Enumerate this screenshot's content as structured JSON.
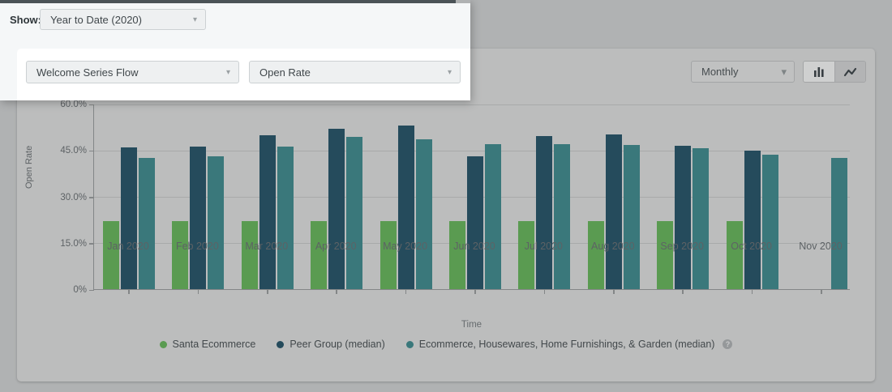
{
  "overlay": {
    "show_label": "Show:",
    "date_range_value": "Year to Date (2020)",
    "flow_value": "Welcome Series Flow",
    "metric_value": "Open Rate"
  },
  "toolbar": {
    "interval_value": "Monthly",
    "chart_type_active": "bar",
    "icons": [
      "bar-chart-icon",
      "line-chart-icon"
    ]
  },
  "chart_data": {
    "type": "bar",
    "title": "",
    "xlabel": "Time",
    "ylabel": "Open Rate",
    "ylim": [
      0,
      60
    ],
    "grid": true,
    "legend_position": "bottom",
    "yticks": [
      {
        "value": 0,
        "label": "0%"
      },
      {
        "value": 15,
        "label": "15.0%"
      },
      {
        "value": 30,
        "label": "30.0%"
      },
      {
        "value": 45,
        "label": "45.0%"
      },
      {
        "value": 60,
        "label": "60.0%"
      }
    ],
    "categories": [
      "Jan 2020",
      "Feb 2020",
      "Mar 2020",
      "Apr 2020",
      "May 2020",
      "Jun 2020",
      "Jul 2020",
      "Aug 2020",
      "Sep 2020",
      "Oct 2020",
      "Nov 2020"
    ],
    "series": [
      {
        "name": "Santa Ecommerce",
        "color": "#5a9b51",
        "values": [
          22,
          22,
          22,
          22,
          22,
          22,
          22,
          22,
          22,
          22,
          null
        ]
      },
      {
        "name": "Peer Group (median)",
        "color": "#254b5c",
        "values": [
          45.8,
          46.2,
          49.8,
          52.0,
          52.8,
          43.1,
          49.6,
          50.0,
          46.4,
          44.9,
          null
        ]
      },
      {
        "name": "Ecommerce, Housewares, Home Furnishings, & Garden (median)",
        "color": "#3a787b",
        "values": [
          42.5,
          43.0,
          46.0,
          49.2,
          48.5,
          47.0,
          46.9,
          46.6,
          45.5,
          43.6,
          42.4
        ]
      }
    ],
    "legend_help_icon": "?"
  },
  "colors": {
    "dim_page_bg": "#b0b2b3",
    "dim_card_bg": "#bcbdbd",
    "spotlight_bg": "#f5f7f8",
    "spotlight_card_bg": "#ffffff",
    "top_strip": "#4b5357"
  }
}
